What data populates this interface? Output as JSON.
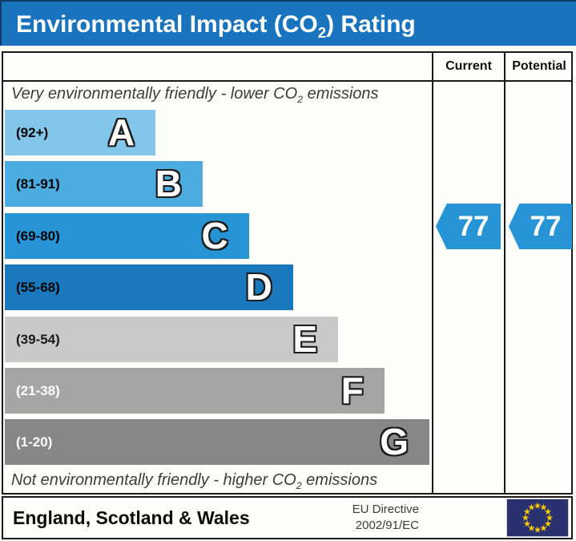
{
  "title": {
    "prefix": "Environmental Impact (CO",
    "sub": "2",
    "suffix": ") Rating"
  },
  "header": {
    "current": "Current",
    "potential": "Potential"
  },
  "notes": {
    "top": {
      "prefix": "Very environmentally friendly - lower CO",
      "sub": "2",
      "suffix": " emissions"
    },
    "bottom": {
      "prefix": "Not environmentally friendly - higher CO",
      "sub": "2",
      "suffix": " emissions"
    }
  },
  "footer": {
    "region": "England, Scotland & Wales",
    "directive_line1": "EU Directive",
    "directive_line2": "2002/91/EC",
    "flag_icon": "eu-flag"
  },
  "colors": {
    "title_bar": "#1a74bd",
    "arrow": "#2795d5",
    "border": "#1a1a1a",
    "eu_flag_bg": "#293170",
    "eu_star": "#ffcc00"
  },
  "chart_data": {
    "type": "bar",
    "title": "Environmental Impact (CO2) Rating",
    "categories": [
      "A",
      "B",
      "C",
      "D",
      "E",
      "F",
      "G"
    ],
    "bands": [
      {
        "letter": "A",
        "range_label": "(92+)",
        "min": 92,
        "max": 100,
        "color": "#83c6e9",
        "label_color": "#000000",
        "width_pct": 35.5
      },
      {
        "letter": "B",
        "range_label": "(81-91)",
        "min": 81,
        "max": 91,
        "color": "#4cabdf",
        "label_color": "#000000",
        "width_pct": 46.6
      },
      {
        "letter": "C",
        "range_label": "(69-80)",
        "min": 69,
        "max": 80,
        "color": "#2795d5",
        "label_color": "#000000",
        "width_pct": 57.5
      },
      {
        "letter": "D",
        "range_label": "(55-68)",
        "min": 55,
        "max": 68,
        "color": "#1a78bd",
        "label_color": "#000000",
        "width_pct": 67.9
      },
      {
        "letter": "E",
        "range_label": "(39-54)",
        "min": 39,
        "max": 54,
        "color": "#c9c9c9",
        "label_color": "#1a1a1a",
        "width_pct": 78.5
      },
      {
        "letter": "F",
        "range_label": "(21-38)",
        "min": 21,
        "max": 38,
        "color": "#a5a5a5",
        "label_color": "#ffffff",
        "width_pct": 89.4
      },
      {
        "letter": "G",
        "range_label": "(1-20)",
        "min": 1,
        "max": 20,
        "color": "#878787",
        "label_color": "#ffffff",
        "width_pct": 100
      }
    ],
    "current": {
      "value": 77,
      "band": "C"
    },
    "potential": {
      "value": 77,
      "band": "C"
    },
    "legend_position": "none",
    "grid": false
  }
}
